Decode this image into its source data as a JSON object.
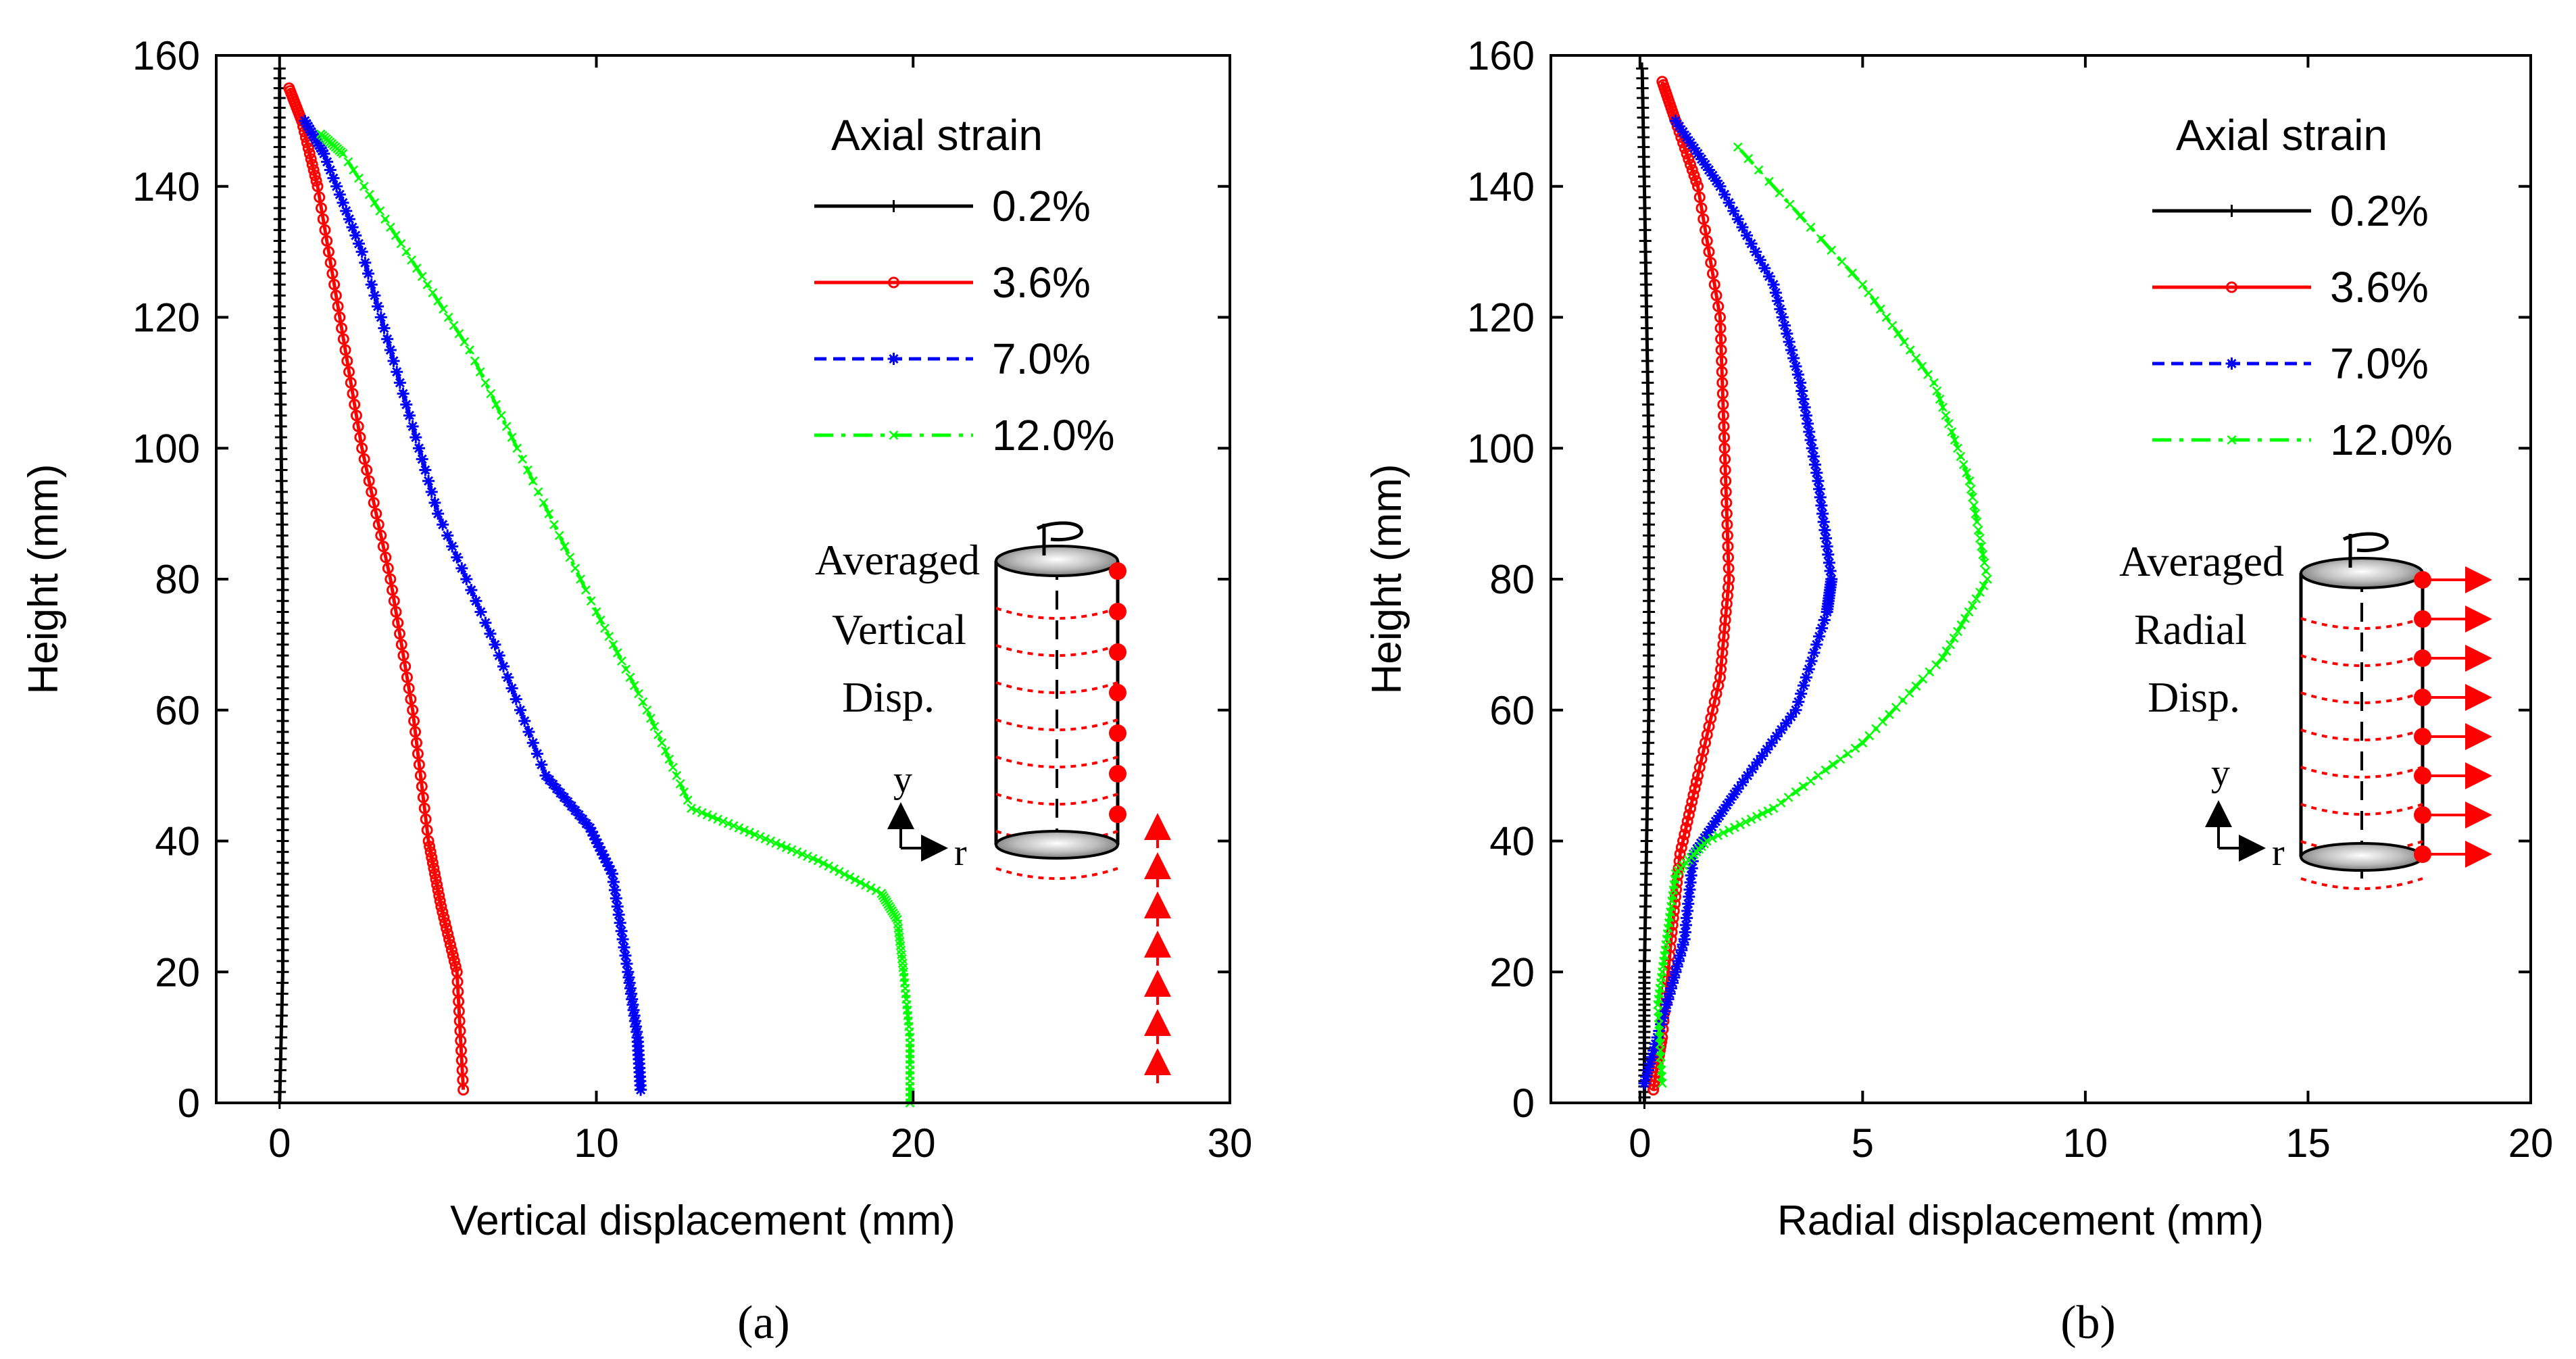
{
  "chart_data": [
    {
      "type": "line",
      "panel_label": "(a)",
      "xlabel": "Vertical displacement (mm)",
      "ylabel": "Height (mm)",
      "xlim": [
        -2,
        30
      ],
      "ylim": [
        0,
        160
      ],
      "xticks": [
        0,
        10,
        20,
        30
      ],
      "yticks": [
        0,
        20,
        40,
        60,
        80,
        100,
        120,
        140,
        160
      ],
      "grid": false,
      "legend": {
        "title": "Axial strain",
        "position": "top-right",
        "entries": [
          "0.2%",
          "3.6%",
          "7.0%",
          "12.0%"
        ]
      },
      "inset": {
        "lines": [
          "Averaged",
          "Vertical",
          "Disp."
        ],
        "axis_y": "y",
        "axis_r": "r",
        "arrow_direction": "up"
      },
      "series": [
        {
          "name": "0.2%",
          "color": "#000000",
          "marker": "plus",
          "dash": "solid",
          "points": [
            [
              0.0,
              0
            ],
            [
              0.1,
              20
            ],
            [
              0.1,
              40
            ],
            [
              0.1,
              60
            ],
            [
              0.1,
              80
            ],
            [
              0.05,
              100
            ],
            [
              0.0,
              120
            ],
            [
              0.0,
              140
            ],
            [
              0.0,
              158
            ]
          ]
        },
        {
          "name": "3.6%",
          "color": "#ff0000",
          "marker": "circle",
          "dash": "solid",
          "points": [
            [
              5.8,
              2
            ],
            [
              5.6,
              20
            ],
            [
              5.1,
              30
            ],
            [
              4.7,
              40
            ],
            [
              4.2,
              60
            ],
            [
              3.5,
              80
            ],
            [
              2.6,
              100
            ],
            [
              1.9,
              120
            ],
            [
              1.2,
              140
            ],
            [
              0.7,
              150
            ],
            [
              0.3,
              155
            ]
          ]
        },
        {
          "name": "7.0%",
          "color": "#0000ff",
          "marker": "star",
          "dash": "dashed",
          "points": [
            [
              11.4,
              2
            ],
            [
              11.3,
              10
            ],
            [
              11.0,
              20
            ],
            [
              10.5,
              35
            ],
            [
              9.8,
              42
            ],
            [
              8.4,
              50
            ],
            [
              6.8,
              70
            ],
            [
              5.0,
              90
            ],
            [
              3.8,
              110
            ],
            [
              2.6,
              130
            ],
            [
              1.4,
              145
            ],
            [
              0.8,
              150
            ]
          ]
        },
        {
          "name": "12.0%",
          "color": "#00ff00",
          "marker": "x",
          "dash": "dashdot",
          "points": [
            [
              19.9,
              0
            ],
            [
              19.9,
              10
            ],
            [
              19.7,
              20
            ],
            [
              19.5,
              28
            ],
            [
              19.0,
              32
            ],
            [
              17.0,
              37
            ],
            [
              15.0,
              41
            ],
            [
              13.0,
              45
            ],
            [
              11.6,
              60
            ],
            [
              10.0,
              75
            ],
            [
              8.0,
              95
            ],
            [
              6.0,
              115
            ],
            [
              4.0,
              130
            ],
            [
              2.0,
              145
            ],
            [
              1.3,
              148
            ]
          ]
        }
      ]
    },
    {
      "type": "line",
      "panel_label": "(b)",
      "xlabel": "Radial displacement (mm)",
      "ylabel": "Height (mm)",
      "xlim": [
        -2,
        20
      ],
      "ylim": [
        0,
        160
      ],
      "xticks": [
        0,
        5,
        10,
        15,
        20
      ],
      "yticks": [
        0,
        20,
        40,
        60,
        80,
        100,
        120,
        140,
        160
      ],
      "grid": false,
      "legend": {
        "title": "Axial strain",
        "position": "top-right",
        "entries": [
          "0.2%",
          "3.6%",
          "7.0%",
          "12.0%"
        ]
      },
      "inset": {
        "lines": [
          "Averaged",
          "Radial",
          "Disp."
        ],
        "axis_y": "y",
        "axis_r": "r",
        "arrow_direction": "right"
      },
      "series": [
        {
          "name": "0.2%",
          "color": "#000000",
          "marker": "plus",
          "dash": "solid",
          "points": [
            [
              0.1,
              0
            ],
            [
              0.1,
              10
            ],
            [
              0.1,
              20
            ],
            [
              0.15,
              40
            ],
            [
              0.2,
              60
            ],
            [
              0.2,
              80
            ],
            [
              0.2,
              100
            ],
            [
              0.15,
              120
            ],
            [
              0.1,
              140
            ],
            [
              0.05,
              158
            ]
          ]
        },
        {
          "name": "3.6%",
          "color": "#ff0000",
          "marker": "circle",
          "dash": "solid",
          "points": [
            [
              0.3,
              2
            ],
            [
              0.5,
              10
            ],
            [
              0.7,
              25
            ],
            [
              0.9,
              38
            ],
            [
              1.3,
              50
            ],
            [
              1.8,
              65
            ],
            [
              2.0,
              80
            ],
            [
              1.9,
              100
            ],
            [
              1.8,
              120
            ],
            [
              1.3,
              140
            ],
            [
              0.8,
              150
            ],
            [
              0.5,
              156
            ]
          ]
        },
        {
          "name": "7.0%",
          "color": "#0000ff",
          "marker": "star",
          "dash": "dashed",
          "points": [
            [
              0.1,
              3
            ],
            [
              0.6,
              15
            ],
            [
              1.0,
              25
            ],
            [
              1.2,
              38
            ],
            [
              2.2,
              48
            ],
            [
              3.5,
              60
            ],
            [
              4.2,
              75
            ],
            [
              4.3,
              80
            ],
            [
              4.0,
              95
            ],
            [
              3.6,
              110
            ],
            [
              3.0,
              125
            ],
            [
              1.8,
              140
            ],
            [
              0.8,
              150
            ]
          ]
        },
        {
          "name": "12.0%",
          "color": "#00ff00",
          "marker": "x",
          "dash": "dashdot",
          "points": [
            [
              0.5,
              3
            ],
            [
              0.4,
              15
            ],
            [
              0.6,
              25
            ],
            [
              0.8,
              35
            ],
            [
              1.5,
              40
            ],
            [
              3.0,
              45
            ],
            [
              5.0,
              55
            ],
            [
              6.8,
              68
            ],
            [
              7.8,
              80
            ],
            [
              7.4,
              95
            ],
            [
              6.6,
              110
            ],
            [
              5.0,
              125
            ],
            [
              2.2,
              146
            ]
          ]
        }
      ]
    }
  ]
}
